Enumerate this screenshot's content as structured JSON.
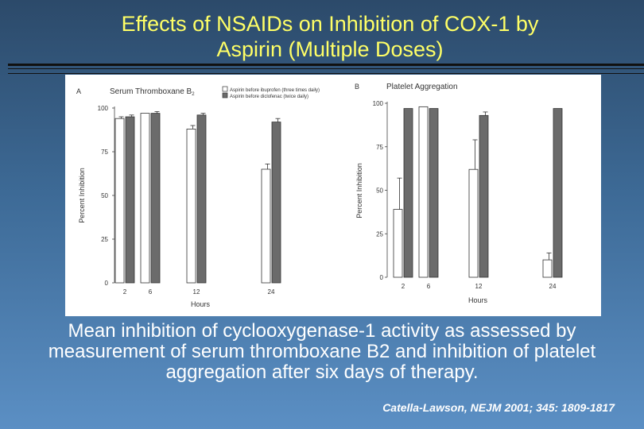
{
  "slide": {
    "title_line1": "Effects of NSAIDs on Inhibition of COX-1 by",
    "title_line2": "Aspirin (Multiple Doses)",
    "caption": "Mean inhibition of cyclooxygenase-1 activity as assessed by measurement of serum thromboxane B2 and inhibition of platelet aggregation after six days of therapy.",
    "citation": "Catella-Lawson, NEJM 2001; 345: 1809-1817",
    "colors": {
      "title": "#ffff66",
      "bar_open": "#ffffff",
      "bar_filled": "#6b6b6b"
    }
  },
  "chart_data": [
    {
      "type": "bar",
      "panel_letter": "A",
      "title": "Serum Thromboxane B",
      "title_subscript": "2",
      "xlabel": "Hours",
      "ylabel": "Percent Inhibition",
      "ylim": [
        0,
        100
      ],
      "yticks": [
        0,
        25,
        50,
        75,
        100
      ],
      "categories": [
        "2",
        "6",
        "12",
        "24"
      ],
      "legend": "top-right",
      "series": [
        {
          "name": "Aspirin before ibuprofen (three times daily)",
          "fill": "open",
          "values": [
            94,
            97,
            88,
            65
          ],
          "errors": [
            1,
            0,
            2,
            3
          ]
        },
        {
          "name": "Aspirin before diclofenac (twice daily)",
          "fill": "filled",
          "values": [
            95,
            97,
            96,
            92
          ],
          "errors": [
            1,
            1,
            1,
            2
          ]
        }
      ]
    },
    {
      "type": "bar",
      "panel_letter": "B",
      "title": "Platelet Aggregation",
      "xlabel": "Hours",
      "ylabel": "Percent Inhibition",
      "ylim": [
        0,
        100
      ],
      "yticks": [
        0,
        25,
        50,
        75,
        100
      ],
      "categories": [
        "2",
        "6",
        "12",
        "24"
      ],
      "series": [
        {
          "name": "Aspirin before ibuprofen (three times daily)",
          "fill": "open",
          "values": [
            39,
            98,
            62,
            10
          ],
          "errors": [
            18,
            0,
            17,
            4
          ]
        },
        {
          "name": "Aspirin before diclofenac (twice daily)",
          "fill": "filled",
          "values": [
            97,
            97,
            93,
            97
          ],
          "errors": [
            0,
            0,
            2,
            0
          ]
        }
      ]
    }
  ]
}
